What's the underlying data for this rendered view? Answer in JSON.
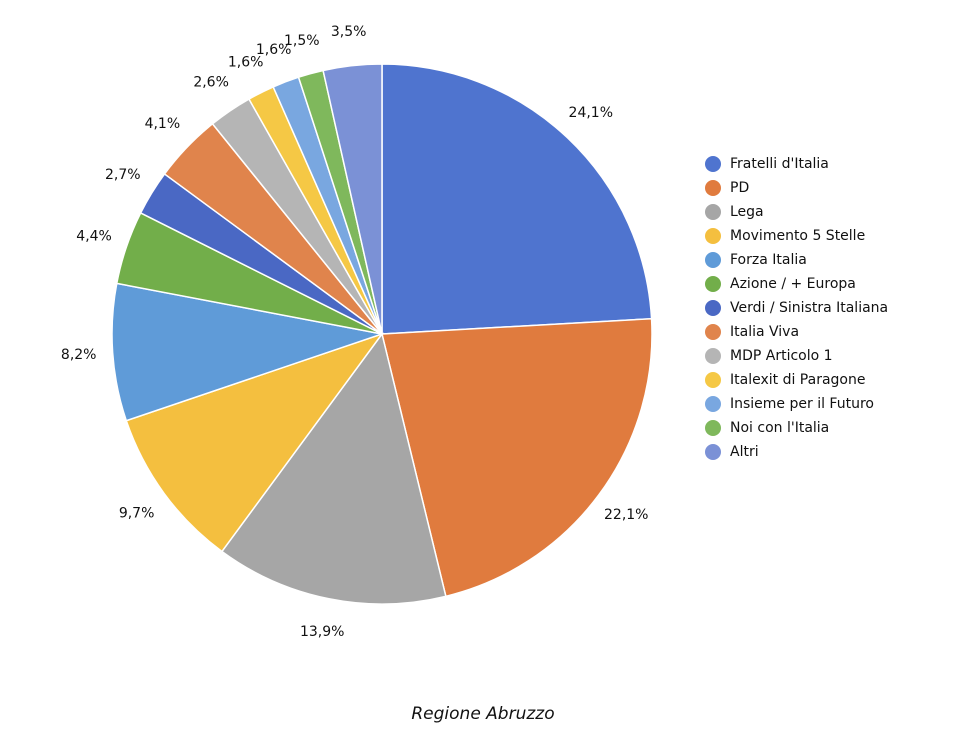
{
  "chart_data": {
    "type": "pie",
    "title": "Regione Abruzzo",
    "categories": [
      "Fratelli d'Italia",
      "PD",
      "Lega",
      "Movimento 5 Stelle",
      "Forza Italia",
      "Azione / + Europa",
      "Verdi / Sinistra Italiana",
      "Italia Viva",
      "MDP Articolo 1",
      "Italexit di Paragone",
      "Insieme per il Futuro",
      "Noi con l'Italia",
      "Altri"
    ],
    "values": [
      24.1,
      22.1,
      13.9,
      9.7,
      8.2,
      4.4,
      2.7,
      4.1,
      2.6,
      1.6,
      1.6,
      1.5,
      3.5
    ],
    "value_labels": [
      "24,1%",
      "22,1%",
      "13,9%",
      "9,7%",
      "8,2%",
      "4,4%",
      "2,7%",
      "4,1%",
      "2,6%",
      "1,6%",
      "1,6%",
      "1,5%",
      "3,5%"
    ],
    "colors": [
      "#4f74cf",
      "#e07b3e",
      "#a6a6a6",
      "#f4bf3f",
      "#5f9bd8",
      "#72ae4a",
      "#4a68c4",
      "#e0844c",
      "#b5b5b5",
      "#f5c845",
      "#79a7e0",
      "#7fb85c",
      "#7b91d6"
    ],
    "legend": "right"
  }
}
